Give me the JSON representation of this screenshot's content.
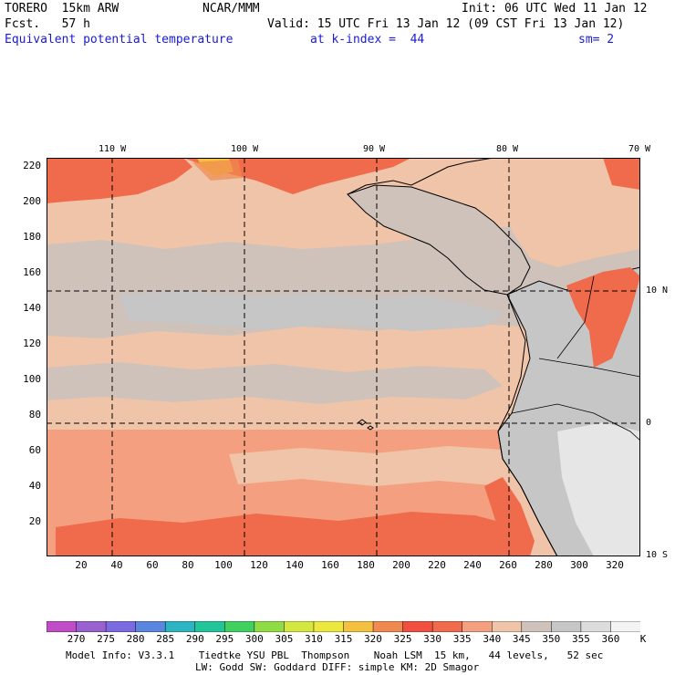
{
  "header": {
    "model": "TORERO  15km ARW",
    "org": "NCAR/MMM",
    "init": "Init: 06 UTC Wed 11 Jan 12",
    "fcst": "Fcst.   57 h",
    "valid": "Valid: 15 UTC Fri 13 Jan 12 (09 CST Fri 13 Jan 12)",
    "field": "Equivalent potential temperature",
    "level": "at k-index =  44",
    "smooth": "sm= 2"
  },
  "map": {
    "lon_labels": [
      "110 W",
      "100 W",
      "90 W",
      "80 W",
      "70 W"
    ],
    "lat_labels": [
      "10 N",
      "0",
      "10 S"
    ],
    "y_ticks": [
      "220",
      "200",
      "180",
      "160",
      "140",
      "120",
      "100",
      "80",
      "60",
      "40",
      "20"
    ],
    "x_ticks": [
      "20",
      "40",
      "60",
      "80",
      "100",
      "120",
      "140",
      "160",
      "180",
      "200",
      "220",
      "240",
      "260",
      "280",
      "300",
      "320"
    ],
    "x_range": [
      0,
      334
    ],
    "y_range": [
      0,
      224
    ]
  },
  "colorbar": {
    "ticks": [
      "270",
      "275",
      "280",
      "285",
      "290",
      "295",
      "300",
      "305",
      "310",
      "315",
      "320",
      "325",
      "330",
      "335",
      "340",
      "345",
      "350",
      "355",
      "360"
    ],
    "unit": "K",
    "colors": [
      "#c04cc8",
      "#9960d0",
      "#7b6ae0",
      "#5a86e0",
      "#2cb4c0",
      "#22c49a",
      "#40d060",
      "#90dc44",
      "#d4e640",
      "#ece840",
      "#f4c040",
      "#f08a50",
      "#f05040",
      "#f06a4c",
      "#f4a080",
      "#f0c4a8",
      "#cfc2bb",
      "#c6c6c6",
      "#dcdcdc",
      "#f4f4f4"
    ]
  },
  "footer": {
    "line1": "Model Info: V3.3.1    Tiedtke YSU PBL  Thompson    Noah LSM  15 km,   44 levels,   52 sec",
    "line2": "LW: Godd SW: Goddard DIFF: simple KM: 2D Smagor"
  }
}
